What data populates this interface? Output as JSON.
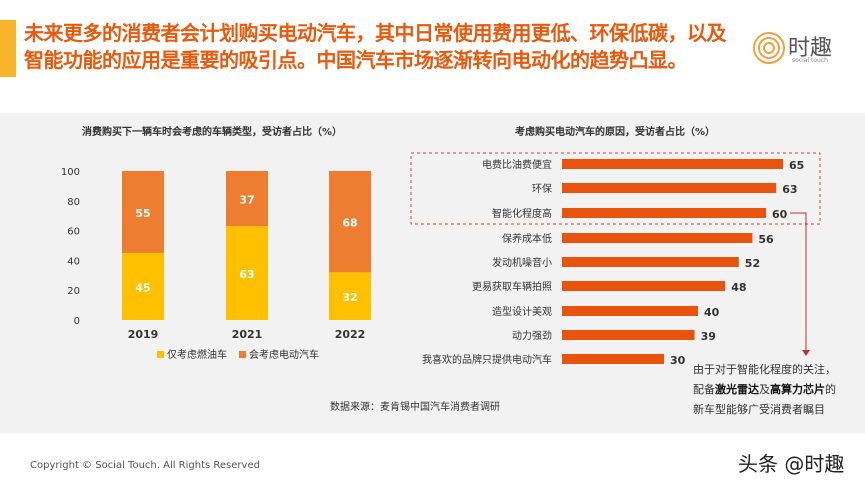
{
  "header": {
    "title": "未来更多的消费者会计划购买电动汽车，其中日常使用费用更低、环保低碳，以及智能功能的应用是重要的吸引点。中国汽车市场逐渐转向电动化的趋势凸显。",
    "logo_name": "时趣",
    "logo_sub": "social touch"
  },
  "chart_data": [
    {
      "type": "bar",
      "stacked": true,
      "title": "消费购买下一辆车时会考虑的车辆类型，受访者占比（%）",
      "categories": [
        "2019",
        "2021",
        "2022"
      ],
      "ylim": [
        0,
        100
      ],
      "yticks": [
        "0",
        "20",
        "40",
        "60",
        "80",
        "100"
      ],
      "series": [
        {
          "name": "仅考虑燃油车",
          "values": [
            45,
            63,
            32
          ],
          "color": "#FFC000"
        },
        {
          "name": "会考虑电动汽车",
          "values": [
            55,
            37,
            68
          ],
          "color": "#ED7D31"
        }
      ],
      "legend": "bottom"
    },
    {
      "type": "bar",
      "orientation": "horizontal",
      "title": "考虑购买电动汽车的原因，受访者占比（%）",
      "categories": [
        "电费比油费便宜",
        "环保",
        "智能化程度高",
        "保养成本低",
        "发动机噪音小",
        "更易获取车辆拍照",
        "造型设计美观",
        "动力强劲",
        "我喜欢的品牌只提供电动汽车"
      ],
      "values": [
        65,
        63,
        60,
        56,
        52,
        48,
        40,
        39,
        30
      ],
      "color": "#E8540E",
      "highlight_box": [
        "电费比油费便宜",
        "环保",
        "智能化程度高"
      ]
    }
  ],
  "source": "数据来源：麦肯锡中国汽车消费者调研",
  "note": {
    "line1": "由于对于智能化程度的关注，",
    "line2_a": "配备",
    "line2_b": "激光雷达",
    "line2_c": "及",
    "line2_d": "高算力芯片",
    "line2_e": "的",
    "line3": "新车型能够广受消费者瞩目"
  },
  "footer": {
    "copyright": "Copyright © Social Touch. All Rights Reserved",
    "watermark": "头条 @时趣"
  }
}
